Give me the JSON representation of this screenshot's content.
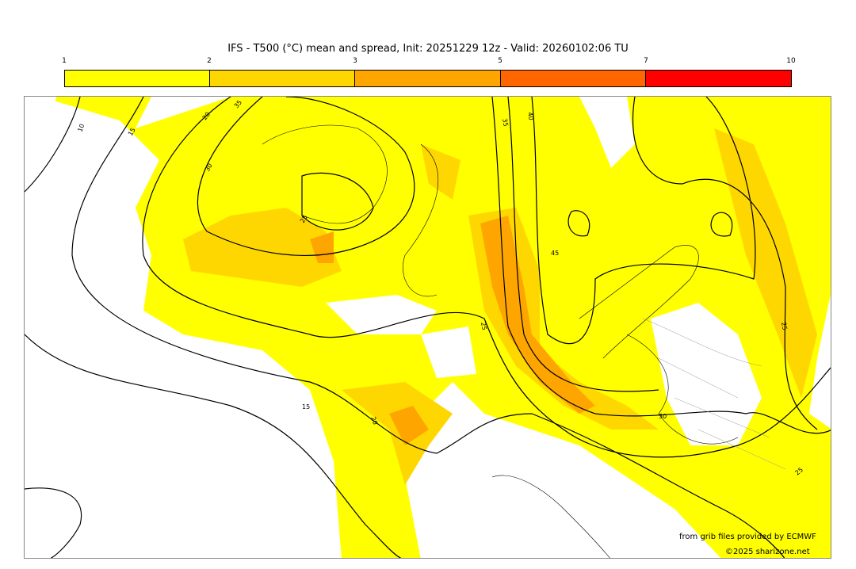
{
  "title": "IFS - T500 (°C) mean and spread, Init: 20251229 12z - Valid: 20260102:06 TU",
  "colorbar": {
    "ticks": [
      "1",
      "2",
      "3",
      "5",
      "7",
      "10"
    ],
    "colors": [
      "#ffff00",
      "#ffd700",
      "#ffa500",
      "#ff6600",
      "#ff0000"
    ]
  },
  "contour_labels": [
    "10",
    "15",
    "20",
    "25",
    "30",
    "35",
    "40",
    "45",
    "15",
    "20",
    "25",
    "25",
    "30",
    "35",
    "25"
  ],
  "credits": {
    "source": "from grib files provided by ECMWF",
    "copyright": "©2025 sharizone.net"
  }
}
